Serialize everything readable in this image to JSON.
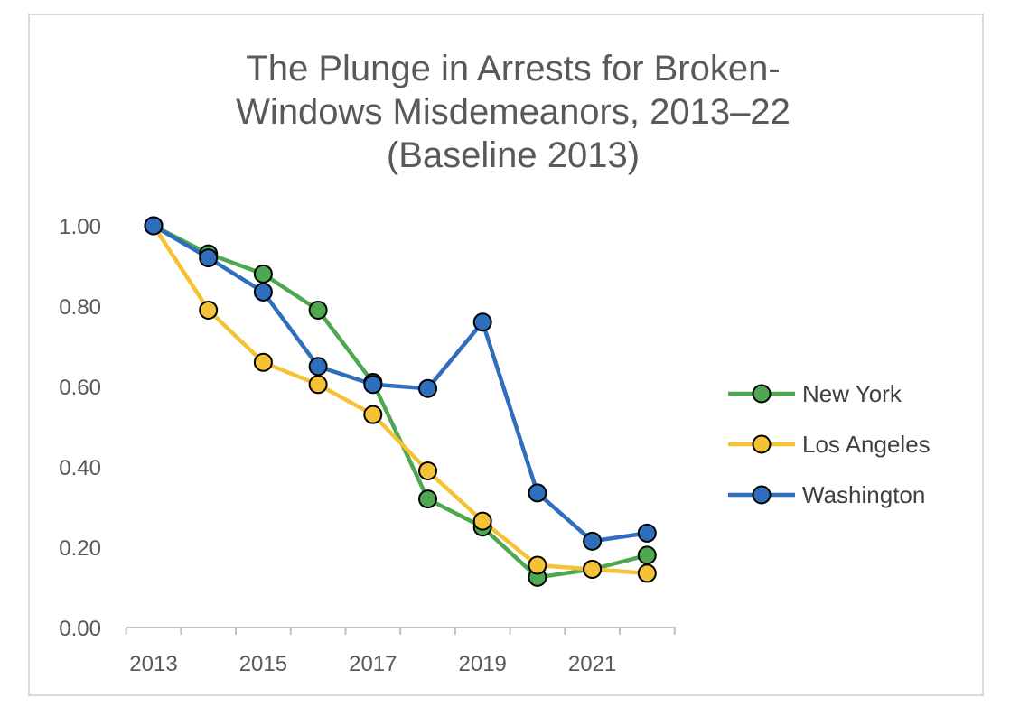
{
  "chart_data": {
    "type": "line",
    "title_lines": [
      "The Plunge in Arrests for Broken-",
      "Windows Misdemeanors, 2013–22",
      "(Baseline 2013)"
    ],
    "x": [
      2013,
      2014,
      2015,
      2016,
      2017,
      2018,
      2019,
      2020,
      2021,
      2022
    ],
    "x_tick_labels": [
      "2013",
      "2015",
      "2017",
      "2019",
      "2021"
    ],
    "y_tick_labels": [
      "0.00",
      "0.20",
      "0.40",
      "0.60",
      "0.80",
      "1.00"
    ],
    "ylim": [
      0,
      1
    ],
    "grid": false,
    "legend_position": "right",
    "series": [
      {
        "name": "New York",
        "color": "#4ea84f",
        "values": [
          1.0,
          0.93,
          0.88,
          0.79,
          0.61,
          0.32,
          0.25,
          0.125,
          0.145,
          0.18
        ]
      },
      {
        "name": "Los Angeles",
        "color": "#f5c236",
        "values": [
          1.0,
          0.79,
          0.66,
          0.605,
          0.53,
          0.39,
          0.265,
          0.155,
          0.145,
          0.135
        ]
      },
      {
        "name": "Washington",
        "color": "#2f6ebd",
        "values": [
          1.0,
          0.92,
          0.835,
          0.65,
          0.605,
          0.595,
          0.76,
          0.335,
          0.215,
          0.235
        ]
      }
    ]
  }
}
